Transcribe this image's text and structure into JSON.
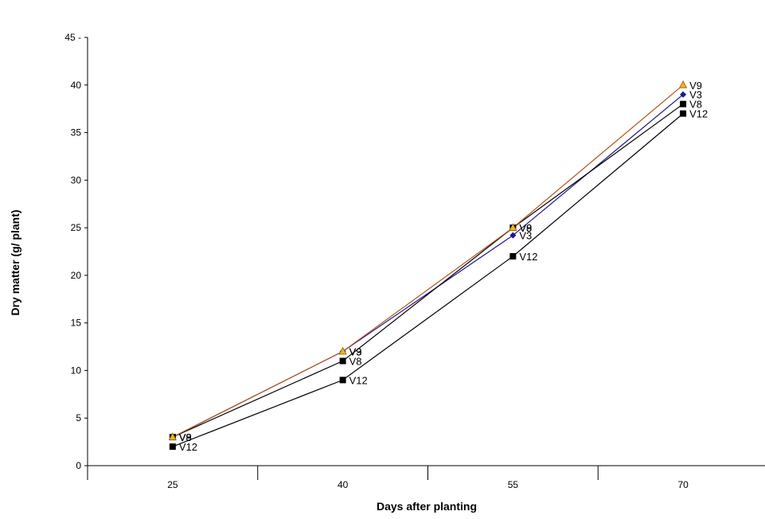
{
  "chart_data": {
    "type": "line",
    "title": "",
    "xlabel": "Days after planting",
    "ylabel": "Dry matter (g/ plant)",
    "categories": [
      "25",
      "40",
      "55",
      "70"
    ],
    "ylim": [
      0,
      45
    ],
    "yticks": [
      "0",
      "5",
      "10",
      "15",
      "20",
      "25",
      "30",
      "35",
      "40",
      "45 -"
    ],
    "grid": false,
    "legend": "none",
    "series": [
      {
        "name": "V3",
        "values": [
          3,
          12,
          24.2,
          39
        ],
        "color": "#1a1a8c",
        "marker": "diamond",
        "marker_color": "#1a1a8c"
      },
      {
        "name": "V8",
        "values": [
          3,
          11,
          25,
          38
        ],
        "color": "#000000",
        "marker": "square",
        "marker_color": "#000000"
      },
      {
        "name": "V9",
        "values": [
          3,
          12,
          25,
          40
        ],
        "color": "#b5541c",
        "marker": "triangle",
        "marker_color": "#f2b21c"
      },
      {
        "name": "V12",
        "values": [
          2,
          9,
          22,
          37
        ],
        "color": "#000000",
        "marker": "square",
        "marker_color": "#000000"
      }
    ]
  }
}
